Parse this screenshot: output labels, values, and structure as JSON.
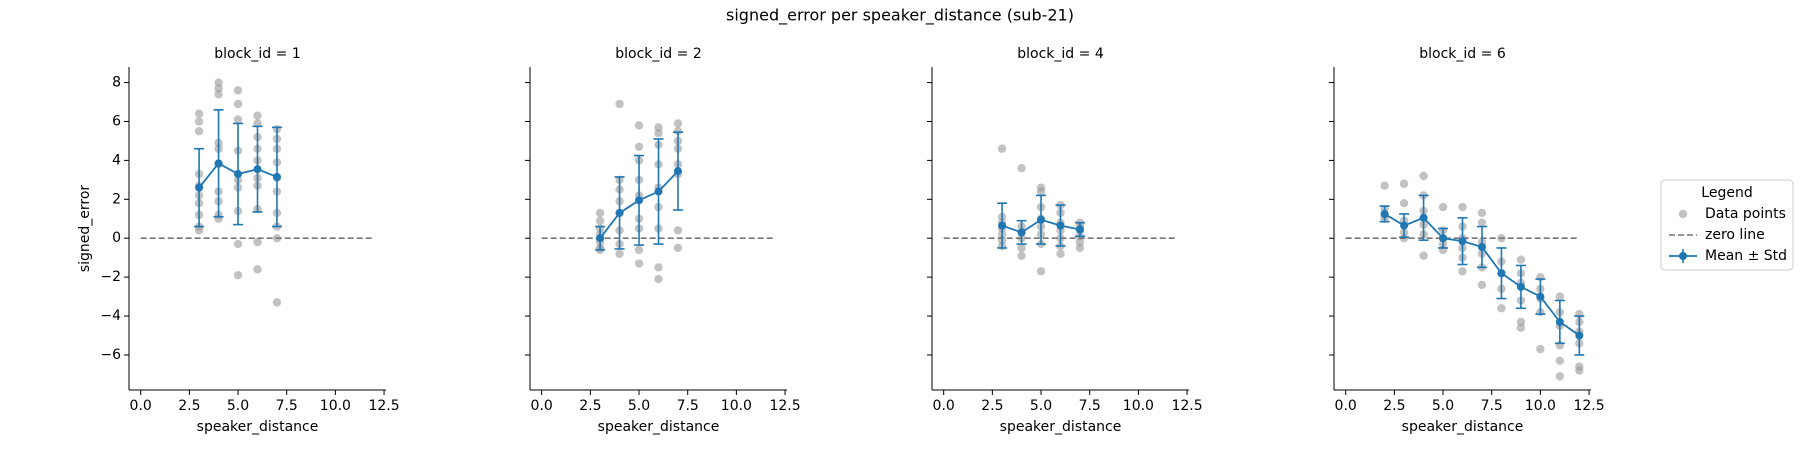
{
  "title": "signed_error per speaker_distance (sub-21)",
  "legend": {
    "title": "Legend",
    "position": "right"
  },
  "chart_data": [
    {
      "type": "facet",
      "title": "block_id = 1",
      "xlabel": "speaker_distance",
      "ylabel": "signed_error",
      "xlim": [
        -0.6,
        12.6
      ],
      "ylim": [
        -7.8,
        8.8
      ],
      "xticks": [
        {
          "value": 0,
          "label": "0.0"
        },
        2.5,
        {
          "value": 5,
          "label": "5.0"
        },
        7.5,
        {
          "value": 10,
          "label": "10.0"
        },
        12.5
      ],
      "yticks": [
        {
          "value": -6,
          "label": "−6"
        },
        {
          "value": -4,
          "label": "−4"
        },
        {
          "value": -2,
          "label": "−2"
        },
        0,
        2,
        4,
        6,
        8
      ],
      "series": [
        {
          "type": "scatter",
          "name": "Data points",
          "color": "#999999",
          "x": [
            3,
            3,
            3,
            3,
            3,
            3,
            3,
            3,
            3,
            3,
            4,
            4,
            4,
            4,
            4,
            4,
            4,
            4,
            4,
            4,
            5,
            5,
            5,
            5,
            5,
            5,
            5,
            5,
            5,
            6,
            6,
            6,
            6,
            6,
            6,
            6,
            6,
            6,
            6,
            7,
            7,
            7,
            7,
            7,
            7,
            7,
            7,
            7,
            7
          ],
          "values": [
            6.4,
            6.0,
            5.5,
            3.3,
            2.7,
            2.2,
            1.8,
            1.2,
            0.6,
            0.4,
            8.0,
            7.7,
            7.4,
            4.9,
            4.6,
            3.8,
            2.4,
            1.9,
            1.2,
            1.0,
            7.6,
            6.9,
            6.1,
            4.5,
            3.0,
            2.6,
            1.4,
            -0.3,
            -1.9,
            6.3,
            5.9,
            5.2,
            4.6,
            4.0,
            3.1,
            2.7,
            1.5,
            -0.2,
            -1.6,
            5.6,
            5.1,
            4.6,
            3.9,
            3.1,
            2.4,
            1.3,
            0.6,
            0.0,
            -3.3
          ]
        },
        {
          "type": "refline",
          "name": "zero line",
          "color": "#777777",
          "x": [
            0,
            12
          ],
          "values": [
            0,
            0
          ]
        },
        {
          "type": "errorbar",
          "name": "Mean ± Std",
          "color": "#1f77b4",
          "x": [
            3,
            4,
            5,
            6,
            7
          ],
          "values": [
            2.6,
            3.85,
            3.3,
            3.55,
            3.15
          ],
          "errors": [
            2.0,
            2.75,
            2.6,
            2.2,
            2.55
          ]
        }
      ]
    },
    {
      "type": "facet",
      "title": "block_id = 2",
      "xlabel": "speaker_distance",
      "xlim": [
        -0.6,
        12.6
      ],
      "ylim": [
        -7.8,
        8.8
      ],
      "xticks": [
        {
          "value": 0,
          "label": "0.0"
        },
        2.5,
        {
          "value": 5,
          "label": "5.0"
        },
        7.5,
        {
          "value": 10,
          "label": "10.0"
        },
        12.5
      ],
      "series": [
        {
          "type": "scatter",
          "color": "#999999",
          "x": [
            3,
            3,
            3,
            3,
            3,
            3,
            3,
            4,
            4,
            4,
            4,
            4,
            4,
            4,
            4,
            5,
            5,
            5,
            5,
            5,
            5,
            5,
            5,
            5,
            6,
            6,
            6,
            6,
            6,
            6,
            6,
            6,
            6,
            7,
            7,
            7,
            7,
            7,
            7,
            7,
            7
          ],
          "values": [
            1.3,
            0.9,
            0.5,
            0.2,
            -0.2,
            -0.5,
            -0.6,
            6.9,
            3.0,
            2.5,
            1.9,
            1.3,
            0.4,
            -0.3,
            -0.8,
            5.8,
            4.7,
            4.0,
            3.0,
            2.2,
            1.0,
            0.5,
            -0.6,
            -1.3,
            5.7,
            5.4,
            4.8,
            3.8,
            2.6,
            1.6,
            0.5,
            -1.5,
            -2.1,
            5.9,
            5.5,
            5.0,
            4.6,
            3.8,
            3.3,
            0.4,
            -0.5
          ]
        },
        {
          "type": "refline",
          "color": "#777777",
          "x": [
            0,
            12
          ],
          "values": [
            0,
            0
          ]
        },
        {
          "type": "errorbar",
          "color": "#1f77b4",
          "x": [
            3,
            4,
            5,
            6,
            7
          ],
          "values": [
            0.0,
            1.3,
            1.95,
            2.4,
            3.45
          ],
          "errors": [
            0.6,
            1.85,
            2.3,
            2.7,
            2.0
          ]
        }
      ]
    },
    {
      "type": "facet",
      "title": "block_id = 4",
      "xlabel": "speaker_distance",
      "xlim": [
        -0.6,
        12.6
      ],
      "ylim": [
        -7.8,
        8.8
      ],
      "xticks": [
        {
          "value": 0,
          "label": "0.0"
        },
        2.5,
        {
          "value": 5,
          "label": "5.0"
        },
        7.5,
        {
          "value": 10,
          "label": "10.0"
        },
        12.5
      ],
      "series": [
        {
          "type": "scatter",
          "color": "#999999",
          "x": [
            3,
            3,
            3,
            3,
            3,
            3,
            3,
            4,
            4,
            4,
            4,
            4,
            4,
            5,
            5,
            5,
            5,
            5,
            5,
            5,
            5,
            6,
            6,
            6,
            6,
            6,
            6,
            6,
            7,
            7,
            7,
            7,
            7,
            7
          ],
          "values": [
            4.6,
            1.1,
            0.8,
            0.5,
            0.2,
            -0.1,
            -0.4,
            3.6,
            0.6,
            0.3,
            0.0,
            -0.5,
            -0.9,
            2.6,
            2.4,
            1.6,
            1.0,
            0.6,
            0.2,
            -0.3,
            -1.7,
            1.7,
            1.3,
            0.8,
            0.4,
            0.0,
            -0.4,
            -0.8,
            0.8,
            0.6,
            0.4,
            0.1,
            -0.2,
            -0.5
          ]
        },
        {
          "type": "refline",
          "color": "#777777",
          "x": [
            0,
            12
          ],
          "values": [
            0,
            0
          ]
        },
        {
          "type": "errorbar",
          "color": "#1f77b4",
          "x": [
            3,
            4,
            5,
            6,
            7
          ],
          "values": [
            0.65,
            0.3,
            0.95,
            0.65,
            0.45
          ],
          "errors": [
            1.15,
            0.6,
            1.25,
            1.05,
            0.35
          ]
        }
      ]
    },
    {
      "type": "facet",
      "title": "block_id = 6",
      "xlabel": "speaker_distance",
      "xlim": [
        -0.6,
        12.6
      ],
      "ylim": [
        -7.8,
        8.8
      ],
      "xticks": [
        {
          "value": 0,
          "label": "0.0"
        },
        2.5,
        {
          "value": 5,
          "label": "5.0"
        },
        7.5,
        {
          "value": 10,
          "label": "10.0"
        },
        12.5
      ],
      "series": [
        {
          "type": "scatter",
          "color": "#999999",
          "x": [
            2,
            2,
            2,
            2,
            3,
            3,
            3,
            3,
            3,
            4,
            4,
            4,
            4,
            4,
            4,
            5,
            5,
            5,
            5,
            5,
            6,
            6,
            6,
            6,
            6,
            6,
            7,
            7,
            7,
            7,
            7,
            7,
            8,
            8,
            8,
            8,
            8,
            9,
            9,
            9,
            9,
            9,
            9,
            10,
            10,
            10,
            10,
            10,
            11,
            11,
            11,
            11,
            11,
            11,
            12,
            12,
            12,
            12,
            12,
            12
          ],
          "values": [
            2.7,
            1.5,
            1.2,
            1.0,
            2.8,
            1.8,
            0.9,
            0.3,
            0.0,
            3.2,
            2.2,
            1.4,
            0.7,
            0.2,
            -0.9,
            1.6,
            0.4,
            0.0,
            -0.3,
            -0.6,
            1.6,
            0.6,
            0.0,
            -0.5,
            -1.0,
            -1.7,
            1.3,
            0.8,
            -0.2,
            -0.8,
            -1.5,
            -2.4,
            0.0,
            -1.2,
            -1.8,
            -2.6,
            -3.6,
            -1.1,
            -1.8,
            -2.3,
            -3.2,
            -4.3,
            -4.6,
            -2.0,
            -2.6,
            -3.1,
            -3.8,
            -5.7,
            -3.0,
            -3.8,
            -4.5,
            -5.5,
            -6.3,
            -7.1,
            -3.9,
            -4.3,
            -4.8,
            -5.4,
            -6.6,
            -6.8
          ]
        },
        {
          "type": "refline",
          "color": "#777777",
          "x": [
            0,
            12
          ],
          "values": [
            0,
            0
          ]
        },
        {
          "type": "errorbar",
          "color": "#1f77b4",
          "x": [
            2,
            3,
            4,
            5,
            6,
            7,
            8,
            9,
            10,
            11,
            12
          ],
          "values": [
            1.25,
            0.65,
            1.05,
            0.0,
            -0.15,
            -0.45,
            -1.8,
            -2.5,
            -3.0,
            -4.3,
            -5.0
          ],
          "errors": [
            0.4,
            0.6,
            1.15,
            0.5,
            1.2,
            1.05,
            1.3,
            1.1,
            0.9,
            1.1,
            1.0
          ]
        }
      ]
    }
  ]
}
